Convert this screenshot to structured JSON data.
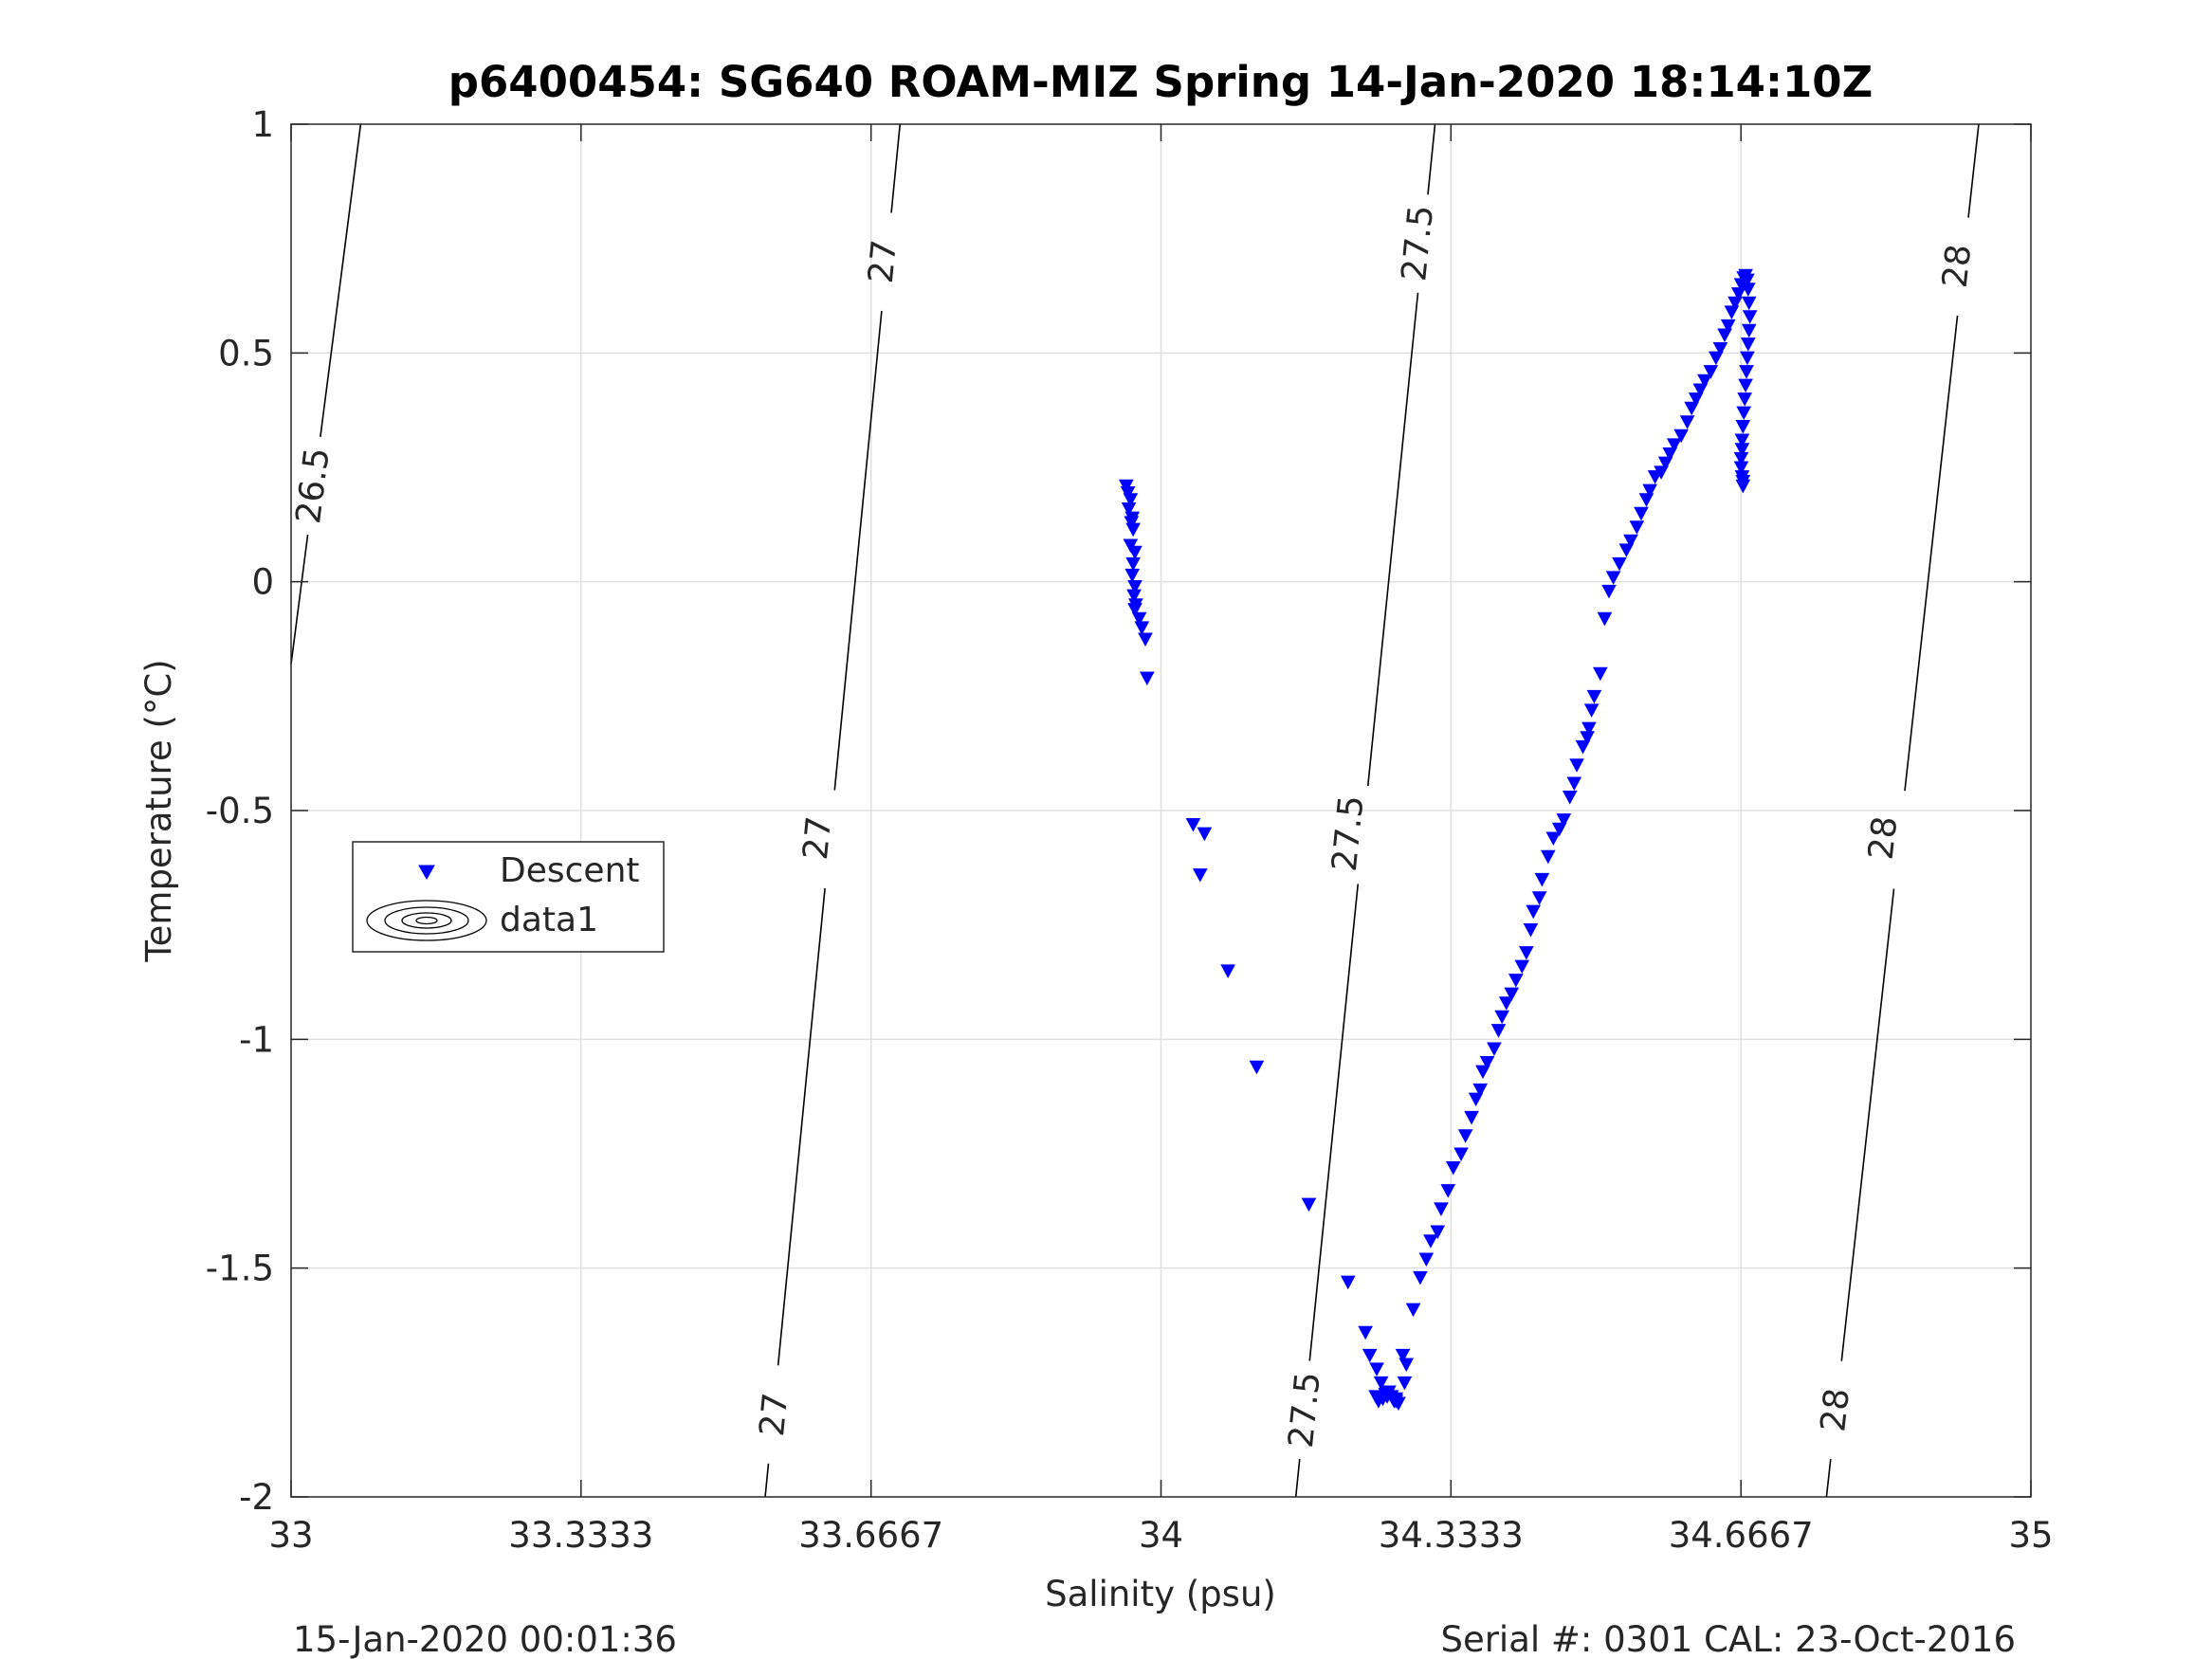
{
  "chart_data": {
    "type": "scatter",
    "title": "p6400454: SG640 ROAM-MIZ Spring 14-Jan-2020 18:14:10Z",
    "xlabel": "Salinity (psu)",
    "ylabel": "Temperature (°C)",
    "xlim": [
      33,
      35
    ],
    "ylim": [
      -2,
      1
    ],
    "xticks": [
      33,
      33.3333,
      33.6667,
      34,
      34.3333,
      34.6667,
      35
    ],
    "xtick_labels": [
      "33",
      "33.3333",
      "33.6667",
      "34",
      "34.3333",
      "34.6667",
      "35"
    ],
    "yticks": [
      -2,
      -1.5,
      -1,
      -0.5,
      0,
      0.5,
      1
    ],
    "ytick_labels": [
      "-2",
      "-1.5",
      "-1",
      "-0.5",
      "0",
      "0.5",
      "1"
    ],
    "grid": true,
    "legend_position": "middle-left",
    "footer_left": "15-Jan-2020 00:01:36",
    "footer_right": "Serial #: 0301  CAL: 23-Oct-2016",
    "series": [
      {
        "name": "Descent",
        "marker": "triangle-down",
        "color": "#0000ff",
        "x": [
          33.96,
          33.962,
          33.965,
          33.963,
          33.967,
          33.966,
          33.968,
          33.965,
          33.97,
          33.968,
          33.967,
          33.97,
          33.969,
          33.971,
          33.97,
          33.975,
          33.978,
          33.982,
          33.984,
          34.037,
          34.05,
          34.045,
          34.077,
          34.11,
          34.17,
          34.215,
          34.235,
          34.24,
          34.248,
          34.253,
          34.262,
          34.265,
          34.27,
          34.273,
          34.268,
          34.26,
          34.255,
          34.25,
          34.247,
          34.258,
          34.27,
          34.28,
          34.282,
          34.278,
          34.29,
          34.298,
          34.305,
          34.31,
          34.318,
          34.322,
          34.33,
          34.336,
          34.345,
          34.35,
          34.357,
          34.362,
          34.367,
          34.37,
          34.375,
          34.383,
          34.388,
          34.392,
          34.397,
          34.403,
          34.408,
          34.415,
          34.42,
          34.425,
          34.428,
          34.435,
          34.438,
          34.445,
          34.451,
          34.458,
          34.463,
          34.47,
          34.475,
          34.478,
          34.485,
          34.49,
          34.492,
          34.495,
          34.498,
          34.505,
          34.51,
          34.515,
          34.52,
          34.527,
          34.535,
          34.54,
          34.547,
          34.552,
          34.558,
          34.562,
          34.568,
          34.575,
          34.58,
          34.585,
          34.59,
          34.598,
          34.605,
          34.61,
          34.615,
          34.62,
          34.625,
          34.632,
          34.638,
          34.643,
          34.648,
          34.652,
          34.656,
          34.66,
          34.664,
          34.667,
          34.67,
          34.672,
          34.674,
          34.675,
          34.676,
          34.677,
          34.676,
          34.675,
          34.674,
          34.673,
          34.672,
          34.671,
          34.67,
          34.669,
          34.668,
          34.668,
          34.667,
          34.667,
          34.668,
          34.669,
          34.669
        ],
        "y": [
          0.21,
          0.195,
          0.18,
          0.16,
          0.14,
          0.13,
          0.115,
          0.08,
          0.065,
          0.04,
          0.015,
          -0.01,
          -0.03,
          -0.05,
          -0.06,
          -0.08,
          -0.1,
          -0.125,
          -0.21,
          -0.53,
          -0.55,
          -0.64,
          -0.85,
          -1.06,
          -1.36,
          -1.53,
          -1.64,
          -1.69,
          -1.72,
          -1.75,
          -1.77,
          -1.78,
          -1.79,
          -1.795,
          -1.79,
          -1.78,
          -1.785,
          -1.79,
          -1.78,
          -1.775,
          -1.785,
          -1.75,
          -1.71,
          -1.69,
          -1.59,
          -1.52,
          -1.48,
          -1.44,
          -1.42,
          -1.37,
          -1.33,
          -1.28,
          -1.25,
          -1.21,
          -1.17,
          -1.13,
          -1.11,
          -1.07,
          -1.05,
          -1.02,
          -0.98,
          -0.95,
          -0.92,
          -0.9,
          -0.87,
          -0.84,
          -0.81,
          -0.76,
          -0.72,
          -0.69,
          -0.65,
          -0.6,
          -0.56,
          -0.54,
          -0.52,
          -0.47,
          -0.44,
          -0.4,
          -0.36,
          -0.34,
          -0.32,
          -0.28,
          -0.25,
          -0.2,
          -0.08,
          -0.02,
          0.01,
          0.04,
          0.07,
          0.09,
          0.12,
          0.15,
          0.18,
          0.2,
          0.23,
          0.24,
          0.26,
          0.28,
          0.3,
          0.32,
          0.35,
          0.38,
          0.4,
          0.42,
          0.44,
          0.46,
          0.49,
          0.51,
          0.54,
          0.56,
          0.59,
          0.61,
          0.63,
          0.65,
          0.665,
          0.67,
          0.66,
          0.64,
          0.61,
          0.58,
          0.55,
          0.52,
          0.49,
          0.46,
          0.43,
          0.4,
          0.37,
          0.34,
          0.31,
          0.29,
          0.27,
          0.25,
          0.23,
          0.22,
          0.21
        ]
      },
      {
        "name": "data1",
        "type": "contour",
        "color": "#000000",
        "levels": [
          {
            "label": "26.5",
            "line": [
              [
                33.0,
                -0.18
              ],
              [
                33.08,
                1.0
              ]
            ],
            "label_positions": [
              [
                33.025,
                0.21
              ]
            ]
          },
          {
            "label": "27",
            "line": [
              [
                33.545,
                -2.0
              ],
              [
                33.7,
                1.0
              ]
            ],
            "label_positions": [
              [
                33.555,
                -1.82
              ],
              [
                33.605,
                -0.56
              ],
              [
                33.68,
                0.7
              ]
            ]
          },
          {
            "label": "27.5",
            "line": [
              [
                34.155,
                -2.0
              ],
              [
                34.315,
                1.0
              ]
            ],
            "label_positions": [
              [
                34.165,
                -1.81
              ],
              [
                34.215,
                -0.55
              ],
              [
                34.295,
                0.74
              ]
            ]
          },
          {
            "label": "28",
            "line": [
              [
                34.765,
                -2.0
              ],
              [
                34.94,
                1.0
              ]
            ],
            "label_positions": [
              [
                34.775,
                -1.81
              ],
              [
                34.83,
                -0.56
              ],
              [
                34.915,
                0.69
              ]
            ]
          }
        ]
      }
    ]
  }
}
